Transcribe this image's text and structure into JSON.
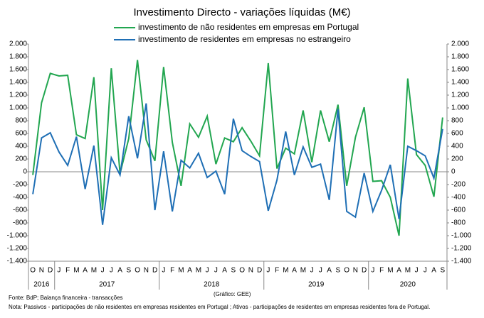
{
  "chart_data": {
    "type": "line",
    "title": "Investimento Directo - variações líquidas (M€)",
    "categories": [
      "O",
      "N",
      "D",
      "J",
      "F",
      "M",
      "A",
      "M",
      "J",
      "J",
      "A",
      "S",
      "O",
      "N",
      "D",
      "J",
      "F",
      "M",
      "A",
      "M",
      "J",
      "J",
      "A",
      "S",
      "O",
      "N",
      "D",
      "J",
      "F",
      "M",
      "A",
      "M",
      "J",
      "J",
      "A",
      "S",
      "O",
      "N",
      "D",
      "J",
      "F",
      "M",
      "A",
      "M",
      "J",
      "J",
      "A",
      "S"
    ],
    "years": [
      "2016",
      "2017",
      "2018",
      "2019",
      "2020"
    ],
    "series": [
      {
        "name": "investimento de não residentes em empresas em Portugal",
        "color": "#22a650",
        "values": [
          -50,
          1080,
          1540,
          1500,
          1510,
          580,
          520,
          1480,
          -600,
          1620,
          -30,
          520,
          1750,
          500,
          170,
          1640,
          460,
          -220,
          750,
          540,
          870,
          120,
          530,
          470,
          690,
          480,
          250,
          1700,
          50,
          370,
          280,
          960,
          150,
          960,
          470,
          1050,
          -220,
          540,
          1010,
          -150,
          -140,
          -400,
          -1000,
          1460,
          270,
          100,
          -390,
          850
        ]
      },
      {
        "name": "investimento de residentes em empresas no estrangeiro",
        "color": "#1f6fb5",
        "values": [
          -350,
          530,
          610,
          310,
          100,
          550,
          -270,
          410,
          -830,
          220,
          -50,
          870,
          210,
          1070,
          -600,
          320,
          -620,
          180,
          60,
          290,
          -90,
          10,
          -350,
          830,
          330,
          240,
          160,
          -610,
          -130,
          630,
          -50,
          390,
          70,
          120,
          -440,
          980,
          -620,
          -710,
          -20,
          -620,
          -290,
          110,
          -740,
          400,
          330,
          250,
          -100,
          670
        ]
      }
    ],
    "ylim": [
      -1400,
      2000
    ],
    "yticks": [
      {
        "value": -1400,
        "label": "-1.400"
      },
      {
        "value": -1200,
        "label": "-1.200"
      },
      {
        "value": -1000,
        "label": "-1.000"
      },
      -800,
      -600,
      -400,
      -200,
      0,
      200,
      400,
      600,
      800,
      {
        "value": 1000,
        "label": "1.000"
      },
      {
        "value": 1200,
        "label": "1.200"
      },
      {
        "value": 1400,
        "label": "1.400"
      },
      {
        "value": 1600,
        "label": "1.600"
      },
      {
        "value": 1800,
        "label": "1.800"
      },
      {
        "value": 2000,
        "label": "2.000"
      }
    ],
    "y2lim": [
      -1400,
      2000
    ],
    "y2ticks": [
      {
        "value": -1400,
        "label": "-1.400"
      },
      {
        "value": -1200,
        "label": "-1.200"
      },
      {
        "value": -1000,
        "label": "-1.000"
      },
      -800,
      -600,
      -400,
      -200,
      0,
      200,
      400,
      600,
      800,
      {
        "value": 1000,
        "label": "1.000"
      },
      {
        "value": 1200,
        "label": "1.200"
      },
      {
        "value": 1400,
        "label": "1.400"
      },
      {
        "value": 1600,
        "label": "1.600"
      },
      {
        "value": 1800,
        "label": "1.800"
      },
      {
        "value": 2000,
        "label": "2.000"
      }
    ],
    "source": "Fonte: BdP; Balança financeira - transacções",
    "credit": "(Gráfico: GEE)",
    "note": "Nota: Passivos - participações de não residentes em empresas residentes em Portugal ; Ativos - participações de residentes em empresas residentes fora de Portugal."
  }
}
